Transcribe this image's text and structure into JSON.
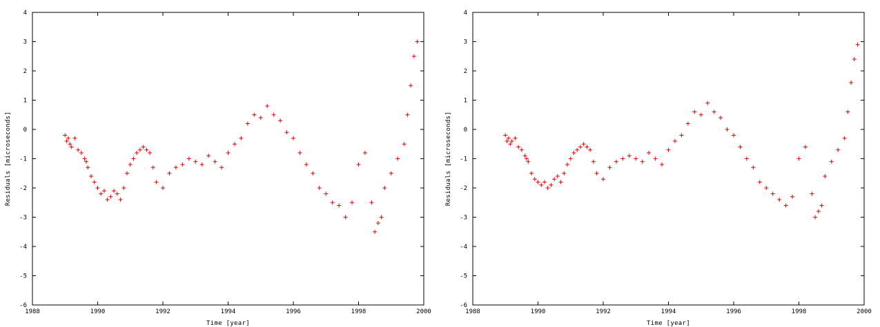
{
  "chart_data": [
    {
      "type": "scatter",
      "title": "",
      "xlabel": "Time [year]",
      "ylabel": "Residuals [microseconds]",
      "xlim": [
        1988,
        2000
      ],
      "ylim": [
        -6,
        4
      ],
      "xticks": [
        1988,
        1990,
        1992,
        1994,
        1996,
        1998,
        2000
      ],
      "yticks": [
        -6,
        -5,
        -4,
        -3,
        -2,
        -1,
        0,
        1,
        2,
        3,
        4
      ],
      "grid": false,
      "legend": "none",
      "marker": "+",
      "marker_color": "#e00000",
      "series": [
        {
          "x": [
            1989.0,
            1989.05,
            1989.1,
            1989.15,
            1989.2,
            1989.3,
            1989.4,
            1989.5,
            1989.6,
            1989.65,
            1989.7,
            1989.8,
            1989.9,
            1990.0,
            1990.1,
            1990.2,
            1990.3,
            1990.4,
            1990.5,
            1990.6,
            1990.7,
            1990.8,
            1990.9,
            1991.0,
            1991.1,
            1991.2,
            1991.3,
            1991.4,
            1991.5,
            1991.6,
            1991.7,
            1991.8,
            1992.0,
            1992.2,
            1992.4,
            1992.6,
            1992.8,
            1993.0,
            1993.2,
            1993.4,
            1993.6,
            1993.8,
            1994.0,
            1994.2,
            1994.4,
            1994.6,
            1994.8,
            1995.0,
            1995.2,
            1995.4,
            1995.6,
            1995.8,
            1996.0,
            1996.2,
            1996.4,
            1996.6,
            1996.8,
            1997.0,
            1997.2,
            1997.4,
            1997.6,
            1997.8,
            1998.0,
            1998.2,
            1998.4,
            1998.5,
            1998.6,
            1998.7,
            1998.8,
            1999.0,
            1999.2,
            1999.4,
            1999.5,
            1999.6,
            1999.7,
            1999.8
          ],
          "y": [
            -0.2,
            -0.4,
            -0.3,
            -0.5,
            -0.6,
            -0.3,
            -0.7,
            -0.8,
            -1.0,
            -1.1,
            -1.3,
            -1.6,
            -1.8,
            -2.0,
            -2.2,
            -2.1,
            -2.4,
            -2.3,
            -2.1,
            -2.2,
            -2.4,
            -2.0,
            -1.5,
            -1.2,
            -1.0,
            -0.8,
            -0.7,
            -0.6,
            -0.7,
            -0.8,
            -1.3,
            -1.8,
            -2.0,
            -1.5,
            -1.3,
            -1.2,
            -1.0,
            -1.1,
            -1.2,
            -0.9,
            -1.1,
            -1.3,
            -0.8,
            -0.5,
            -0.3,
            0.2,
            0.5,
            0.4,
            0.8,
            0.5,
            0.3,
            -0.1,
            -0.3,
            -0.8,
            -1.2,
            -1.5,
            -2.0,
            -2.2,
            -2.5,
            -2.6,
            -3.0,
            -2.5,
            -1.2,
            -0.8,
            -2.5,
            -3.5,
            -3.2,
            -3.0,
            -2.0,
            -1.5,
            -1.0,
            -0.5,
            0.5,
            1.5,
            2.5,
            3.0
          ]
        }
      ]
    },
    {
      "type": "scatter",
      "title": "",
      "xlabel": "Time [year]",
      "ylabel": "Residuals [microseconds]",
      "xlim": [
        1988,
        2000
      ],
      "ylim": [
        -6,
        4
      ],
      "xticks": [
        1988,
        1990,
        1992,
        1994,
        1996,
        1998,
        2000
      ],
      "yticks": [
        -6,
        -5,
        -4,
        -3,
        -2,
        -1,
        0,
        1,
        2,
        3,
        4
      ],
      "grid": false,
      "legend": "none",
      "marker": "+",
      "marker_color": "#e00000",
      "series": [
        {
          "x": [
            1989.0,
            1989.05,
            1989.1,
            1989.15,
            1989.2,
            1989.3,
            1989.4,
            1989.5,
            1989.6,
            1989.65,
            1989.7,
            1989.8,
            1989.9,
            1990.0,
            1990.1,
            1990.2,
            1990.3,
            1990.4,
            1990.5,
            1990.6,
            1990.7,
            1990.8,
            1990.9,
            1991.0,
            1991.1,
            1991.2,
            1991.3,
            1991.4,
            1991.5,
            1991.6,
            1991.7,
            1991.8,
            1992.0,
            1992.2,
            1992.4,
            1992.6,
            1992.8,
            1993.0,
            1993.2,
            1993.4,
            1993.6,
            1993.8,
            1994.0,
            1994.2,
            1994.4,
            1994.6,
            1994.8,
            1995.0,
            1995.2,
            1995.4,
            1995.6,
            1995.8,
            1996.0,
            1996.2,
            1996.4,
            1996.6,
            1996.8,
            1997.0,
            1997.2,
            1997.4,
            1997.6,
            1997.8,
            1998.0,
            1998.2,
            1998.4,
            1998.5,
            1998.6,
            1998.7,
            1998.8,
            1999.0,
            1999.2,
            1999.4,
            1999.5,
            1999.6,
            1999.7,
            1999.8
          ],
          "y": [
            -0.2,
            -0.4,
            -0.3,
            -0.5,
            -0.4,
            -0.3,
            -0.6,
            -0.7,
            -0.9,
            -1.0,
            -1.1,
            -1.5,
            -1.7,
            -1.8,
            -1.9,
            -1.8,
            -2.0,
            -1.9,
            -1.7,
            -1.6,
            -1.8,
            -1.5,
            -1.2,
            -1.0,
            -0.8,
            -0.7,
            -0.6,
            -0.5,
            -0.6,
            -0.7,
            -1.1,
            -1.5,
            -1.7,
            -1.3,
            -1.1,
            -1.0,
            -0.9,
            -1.0,
            -1.1,
            -0.8,
            -1.0,
            -1.2,
            -0.7,
            -0.4,
            -0.2,
            0.2,
            0.6,
            0.5,
            0.9,
            0.6,
            0.4,
            0.0,
            -0.2,
            -0.6,
            -1.0,
            -1.3,
            -1.8,
            -2.0,
            -2.2,
            -2.4,
            -2.6,
            -2.3,
            -1.0,
            -0.6,
            -2.2,
            -3.0,
            -2.8,
            -2.6,
            -1.6,
            -1.1,
            -0.7,
            -0.3,
            0.6,
            1.6,
            2.4,
            2.9
          ]
        }
      ]
    }
  ]
}
